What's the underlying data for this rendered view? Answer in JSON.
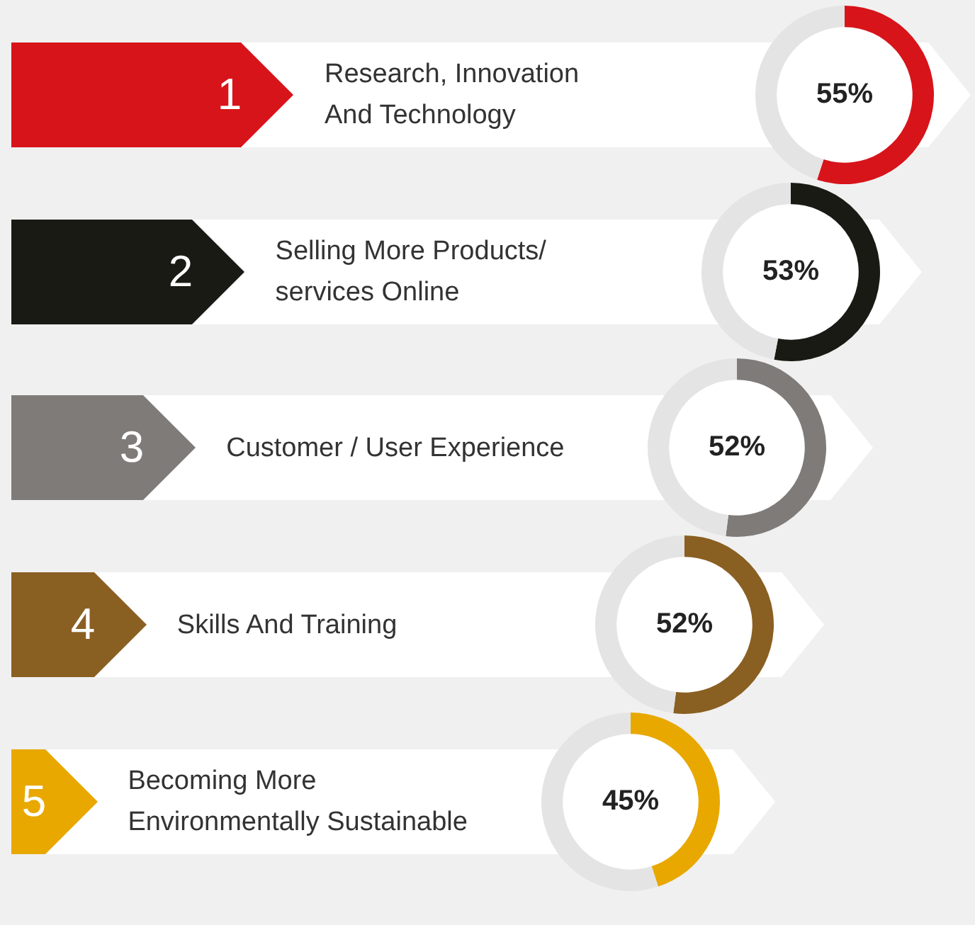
{
  "chart_data": [
    {
      "type": "donut",
      "title": "Research, Innovation\nAnd Technology",
      "annotations": [
        "1"
      ],
      "categories": [
        null,
        null
      ],
      "values": [
        55,
        45
      ],
      "colors": [
        "#d7141a",
        "#e4e4e4"
      ],
      "value_labels": [
        "55%",
        null
      ]
    },
    {
      "type": "donut",
      "title": "Selling More Products/\nservices Online",
      "annotations": [
        "2"
      ],
      "categories": [
        null,
        null
      ],
      "values": [
        53,
        47
      ],
      "colors": [
        "#1a1a14",
        "#e4e4e4"
      ],
      "value_labels": [
        "53%",
        null
      ]
    },
    {
      "type": "donut",
      "title": "Customer / User Experience",
      "annotations": [
        "3"
      ],
      "categories": [
        null,
        null
      ],
      "values": [
        52,
        48
      ],
      "colors": [
        "#7f7b78",
        "#e4e4e4"
      ],
      "value_labels": [
        "52%",
        null
      ]
    },
    {
      "type": "donut",
      "title": "Skills And Training",
      "annotations": [
        "4"
      ],
      "categories": [
        null,
        null
      ],
      "values": [
        52,
        48
      ],
      "colors": [
        "#8a5f22",
        "#e4e4e4"
      ],
      "value_labels": [
        "52%",
        null
      ]
    },
    {
      "type": "donut",
      "title": "Becoming More\nEnvironmentally Sustainable",
      "annotations": [
        "5"
      ],
      "categories": [
        null,
        null
      ],
      "values": [
        45,
        55
      ],
      "colors": [
        "#e8a800",
        "#e4e4e4"
      ],
      "value_labels": [
        "45%",
        null
      ]
    }
  ]
}
